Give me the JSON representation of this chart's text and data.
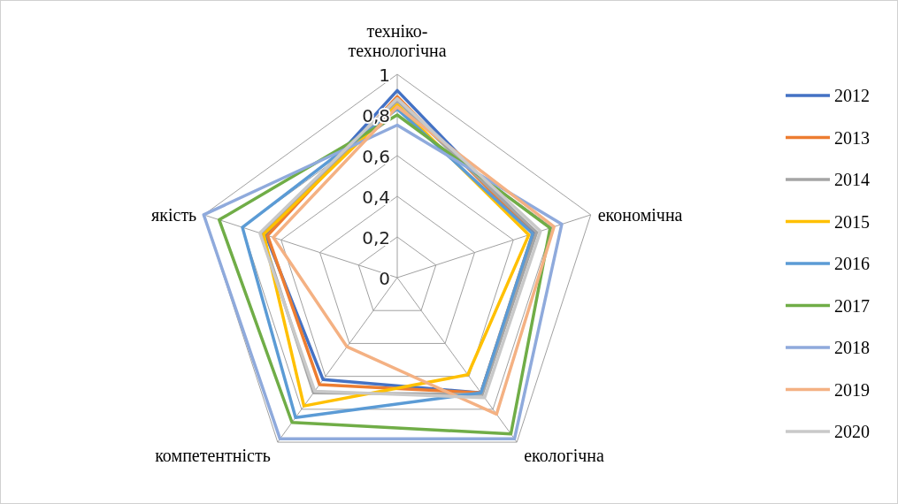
{
  "chart_data": {
    "type": "radar",
    "categories": [
      "техніко-технологічна",
      "економічна",
      "екологічна",
      "компетентність",
      "якість"
    ],
    "ylim": [
      0,
      1
    ],
    "yticks": [
      0,
      {
        "value": 0.2,
        "label": "0,2"
      },
      {
        "value": 0.4,
        "label": "0,4"
      },
      {
        "value": 0.6,
        "label": "0,6"
      },
      {
        "value": 0.8,
        "label": "0,8"
      },
      1
    ],
    "legend": "right",
    "grid": true,
    "series": [
      {
        "name": "2012",
        "color": "#4472c4",
        "values": [
          0.92,
          0.71,
          0.7,
          0.62,
          0.68
        ]
      },
      {
        "name": "2013",
        "color": "#ed7d31",
        "values": [
          0.89,
          0.7,
          0.7,
          0.65,
          0.67
        ]
      },
      {
        "name": "2014",
        "color": "#a5a5a5",
        "values": [
          0.87,
          0.72,
          0.71,
          0.7,
          0.7
        ]
      },
      {
        "name": "2015",
        "color": "#ffc000",
        "values": [
          0.85,
          0.68,
          0.59,
          0.78,
          0.69
        ]
      },
      {
        "name": "2016",
        "color": "#5b9bd5",
        "values": [
          0.83,
          0.7,
          0.7,
          0.85,
          0.8
        ]
      },
      {
        "name": "2017",
        "color": "#70ad47",
        "values": [
          0.8,
          0.79,
          0.95,
          0.88,
          0.92
        ]
      },
      {
        "name": "2018",
        "color": "#8faadc",
        "values": [
          0.75,
          0.85,
          0.98,
          0.98,
          1.0
        ]
      },
      {
        "name": "2019",
        "color": "#f4b183",
        "values": [
          0.84,
          0.81,
          0.83,
          0.42,
          0.64
        ]
      },
      {
        "name": "2020",
        "color": "#c9c9c9",
        "values": [
          0.88,
          0.74,
          0.73,
          0.69,
          0.71
        ]
      }
    ]
  }
}
